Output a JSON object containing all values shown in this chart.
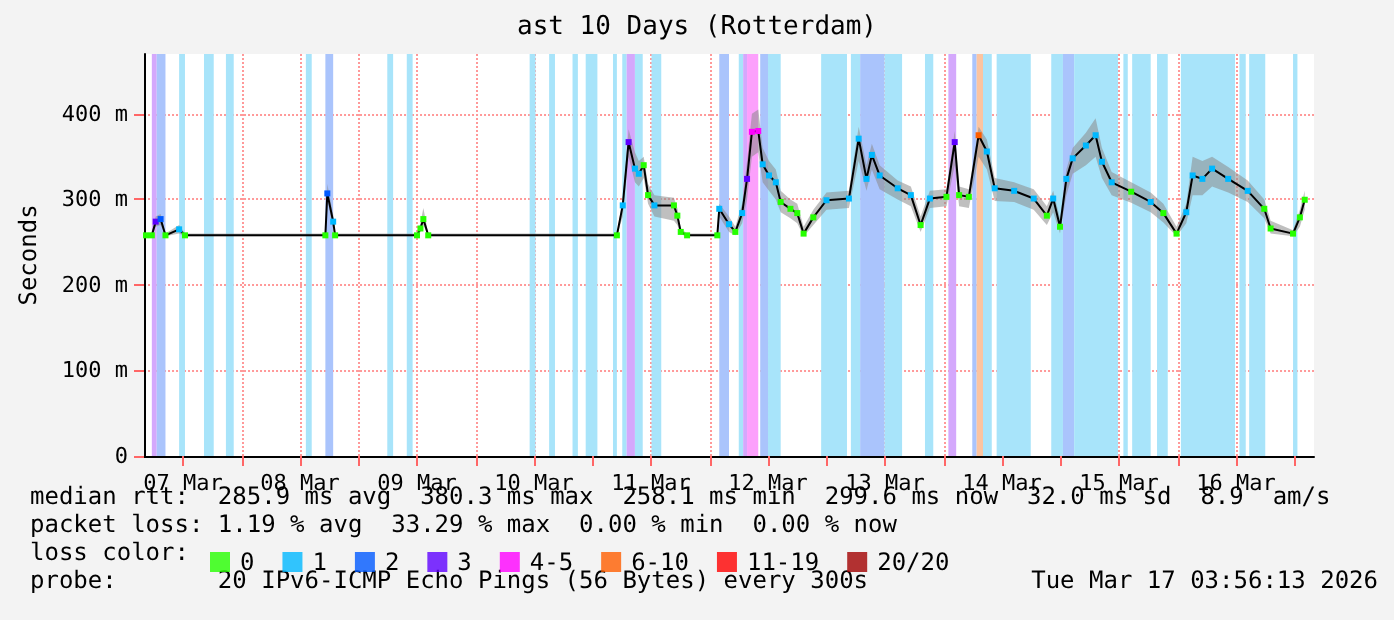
{
  "chart_data": {
    "type": "line",
    "title": "ast 10 Days (Rotterdam)",
    "ylabel": "Seconds",
    "xlim": [
      "2026-03-07T04:00",
      "2026-03-17T04:00"
    ],
    "xticks": [
      {
        "value": "2026-03-07T12:00",
        "label": "07 Mar"
      },
      {
        "value": "2026-03-08T00:00",
        "label": null
      },
      {
        "value": "2026-03-08T12:00",
        "label": "08 Mar"
      },
      {
        "value": "2026-03-09T00:00",
        "label": null
      },
      {
        "value": "2026-03-09T12:00",
        "label": "09 Mar"
      },
      {
        "value": "2026-03-10T00:00",
        "label": null
      },
      {
        "value": "2026-03-10T12:00",
        "label": "10 Mar"
      },
      {
        "value": "2026-03-11T00:00",
        "label": null
      },
      {
        "value": "2026-03-11T12:00",
        "label": "11 Mar"
      },
      {
        "value": "2026-03-12T00:00",
        "label": null
      },
      {
        "value": "2026-03-12T12:00",
        "label": "12 Mar"
      },
      {
        "value": "2026-03-13T00:00",
        "label": null
      },
      {
        "value": "2026-03-13T12:00",
        "label": "13 Mar"
      },
      {
        "value": "2026-03-14T00:00",
        "label": null
      },
      {
        "value": "2026-03-14T12:00",
        "label": "14 Mar"
      },
      {
        "value": "2026-03-15T00:00",
        "label": null
      },
      {
        "value": "2026-03-15T12:00",
        "label": "15 Mar"
      },
      {
        "value": "2026-03-16T00:00",
        "label": null
      },
      {
        "value": "2026-03-16T12:00",
        "label": "16 Mar"
      },
      {
        "value": "2026-03-17T00:00",
        "label": null
      }
    ],
    "ylim": [
      0,
      470
    ],
    "yticks": [
      0,
      {
        "value": 100,
        "label": "100 m"
      },
      {
        "value": 200,
        "label": "200 m"
      },
      {
        "value": 300,
        "label": "300 m"
      },
      {
        "value": 400,
        "label": "400 m"
      }
    ],
    "grid": true,
    "legend": "bottom",
    "legend_title": "loss color:",
    "marker": "square",
    "line_style": "solid",
    "series": [
      {
        "color": "#000000",
        "x": [
          "2026-03-07T04:24",
          "2026-03-07T05:36",
          "2026-03-07T06:24",
          "2026-03-07T07:24",
          "2026-03-07T08:24",
          "2026-03-07T11:12",
          "2026-03-07T12:24",
          "2026-03-08T17:12",
          "2026-03-08T17:36",
          "2026-03-08T18:48",
          "2026-03-08T19:12",
          "2026-03-09T12:00",
          "2026-03-09T12:42",
          "2026-03-09T13:18",
          "2026-03-09T14:18",
          "2026-03-11T05:00",
          "2026-03-11T06:12",
          "2026-03-11T07:24",
          "2026-03-11T08:42",
          "2026-03-11T09:30",
          "2026-03-11T10:30",
          "2026-03-11T11:24",
          "2026-03-11T12:42",
          "2026-03-11T16:42",
          "2026-03-11T17:24",
          "2026-03-11T18:06",
          "2026-03-11T19:24",
          "2026-03-12T01:36",
          "2026-03-12T02:00",
          "2026-03-12T04:00",
          "2026-03-12T05:18",
          "2026-03-12T06:42",
          "2026-03-12T07:42",
          "2026-03-12T08:42",
          "2026-03-12T10:00",
          "2026-03-12T10:54",
          "2026-03-12T12:12",
          "2026-03-12T13:36",
          "2026-03-12T14:36",
          "2026-03-12T16:36",
          "2026-03-12T18:00",
          "2026-03-12T19:18",
          "2026-03-12T21:18",
          "2026-03-13T00:00",
          "2026-03-13T04:36",
          "2026-03-13T06:36",
          "2026-03-13T08:12",
          "2026-03-13T09:18",
          "2026-03-13T10:54",
          "2026-03-13T14:36",
          "2026-03-13T17:18",
          "2026-03-13T19:18",
          "2026-03-13T21:12",
          "2026-03-14T00:36",
          "2026-03-14T02:18",
          "2026-03-14T03:12",
          "2026-03-14T05:12",
          "2026-03-14T07:12",
          "2026-03-14T08:54",
          "2026-03-14T10:30",
          "2026-03-14T14:30",
          "2026-03-14T18:30",
          "2026-03-14T21:12",
          "2026-03-14T22:30",
          "2026-03-14T23:54",
          "2026-03-15T01:12",
          "2026-03-15T02:30",
          "2026-03-15T05:12",
          "2026-03-15T07:12",
          "2026-03-15T08:30",
          "2026-03-15T10:30",
          "2026-03-15T14:30",
          "2026-03-15T18:30",
          "2026-03-15T21:06",
          "2026-03-15T23:48",
          "2026-03-16T01:48",
          "2026-03-16T03:06",
          "2026-03-16T05:06",
          "2026-03-16T07:06",
          "2026-03-16T10:24",
          "2026-03-16T14:24",
          "2026-03-16T17:48",
          "2026-03-16T19:06",
          "2026-03-16T23:42",
          "2026-03-17T01:06",
          "2026-03-17T02:06"
        ],
        "values": [
          258,
          258,
          274,
          277,
          258,
          265,
          258,
          258,
          307,
          274,
          258,
          258,
          266,
          277,
          258,
          258,
          293,
          367,
          336,
          330,
          340,
          305,
          293,
          293,
          281,
          262,
          258,
          258,
          289,
          271,
          262,
          284,
          324,
          379,
          380,
          341,
          328,
          320,
          297,
          289,
          284,
          260,
          279,
          299,
          301,
          371,
          324,
          352,
          328,
          313,
          305,
          270,
          301,
          303,
          367,
          305,
          303,
          375,
          356,
          313,
          310,
          301,
          281,
          301,
          268,
          324,
          348,
          363,
          375,
          344,
          320,
          309,
          297,
          284,
          260,
          285,
          328,
          324,
          336,
          324,
          310,
          289,
          266,
          260,
          279,
          299.6
        ],
        "lower": [
          257,
          257,
          268,
          270,
          257,
          260,
          257,
          257,
          300,
          265,
          257,
          257,
          262,
          270,
          257,
          257,
          280,
          350,
          320,
          315,
          325,
          295,
          280,
          275,
          270,
          259,
          257,
          257,
          280,
          262,
          258,
          272,
          300,
          350,
          355,
          320,
          310,
          300,
          285,
          278,
          272,
          257,
          270,
          288,
          290,
          345,
          310,
          335,
          312,
          300,
          292,
          262,
          290,
          292,
          340,
          292,
          290,
          350,
          335,
          298,
          297,
          288,
          270,
          285,
          260,
          305,
          330,
          340,
          350,
          325,
          305,
          296,
          285,
          273,
          257,
          272,
          305,
          305,
          315,
          308,
          297,
          278,
          260,
          257,
          268,
          288
        ],
        "upper": [
          260,
          260,
          280,
          283,
          260,
          270,
          260,
          260,
          318,
          282,
          260,
          260,
          272,
          290,
          260,
          260,
          300,
          382,
          355,
          345,
          350,
          318,
          305,
          302,
          290,
          266,
          260,
          260,
          295,
          280,
          268,
          295,
          345,
          400,
          405,
          360,
          345,
          335,
          310,
          300,
          295,
          268,
          288,
          308,
          310,
          385,
          340,
          365,
          340,
          322,
          315,
          280,
          310,
          312,
          380,
          315,
          312,
          385,
          370,
          325,
          320,
          312,
          292,
          310,
          278,
          335,
          360,
          378,
          395,
          360,
          332,
          320,
          308,
          295,
          268,
          295,
          350,
          345,
          350,
          338,
          322,
          300,
          275,
          264,
          288,
          310
        ],
        "colors": [
          "#26ff00",
          "#26ff00",
          "#5e00ff",
          "#0059ff",
          "#26ff00",
          "#00b8ff",
          "#26ff00",
          "#26ff00",
          "#0059ff",
          "#00b8ff",
          "#26ff00",
          "#26ff00",
          "#26ff00",
          "#26ff00",
          "#26ff00",
          "#26ff00",
          "#00b8ff",
          "#5e00ff",
          "#00b8ff",
          "#00b8ff",
          "#26ff00",
          "#26ff00",
          "#00b8ff",
          "#26ff00",
          "#26ff00",
          "#26ff00",
          "#26ff00",
          "#26ff00",
          "#00b8ff",
          "#00b8ff",
          "#26ff00",
          "#00b8ff",
          "#5e00ff",
          "#ff00ff",
          "#ff00ff",
          "#00b8ff",
          "#00b8ff",
          "#00b8ff",
          "#26ff00",
          "#26ff00",
          "#26ff00",
          "#26ff00",
          "#26ff00",
          "#00b8ff",
          "#00b8ff",
          "#00b8ff",
          "#00b8ff",
          "#00b8ff",
          "#00b8ff",
          "#00b8ff",
          "#00b8ff",
          "#26ff00",
          "#00b8ff",
          "#26ff00",
          "#5e00ff",
          "#26ff00",
          "#26ff00",
          "#ff5e00",
          "#00b8ff",
          "#00b8ff",
          "#00b8ff",
          "#00b8ff",
          "#26ff00",
          "#00b8ff",
          "#26ff00",
          "#00b8ff",
          "#00b8ff",
          "#00b8ff",
          "#00b8ff",
          "#00b8ff",
          "#00b8ff",
          "#26ff00",
          "#00b8ff",
          "#26ff00",
          "#26ff00",
          "#00b8ff",
          "#00b8ff",
          "#00b8ff",
          "#00b8ff",
          "#00b8ff",
          "#00b8ff",
          "#26ff00",
          "#26ff00",
          "#26ff00",
          "#26ff00",
          "#26ff00"
        ]
      },
      {
        "type": "scatter",
        "name": "0",
        "color": "#26ff00"
      },
      {
        "type": "scatter",
        "name": "1",
        "color": "#00b8ff"
      },
      {
        "type": "scatter",
        "name": "2",
        "color": "#0059ff"
      },
      {
        "type": "scatter",
        "name": "3",
        "color": "#5e00ff"
      },
      {
        "type": "scatter",
        "name": "4-5",
        "color": "#ff00ff"
      },
      {
        "type": "scatter",
        "name": "6-10",
        "color": "#ff5e00"
      },
      {
        "type": "scatter",
        "name": "11-19",
        "color": "#ff0000"
      },
      {
        "type": "scatter",
        "name": "20/20",
        "color": "#a10000"
      }
    ],
    "bands": [
      {
        "axis": "x",
        "from": "2026-03-07T05:36",
        "to": "2026-03-07T06:36",
        "color": "#d4a8fc"
      },
      {
        "axis": "x",
        "from": "2026-03-07T06:36",
        "to": "2026-03-07T08:24",
        "color": "#aac4fc"
      },
      {
        "axis": "x",
        "from": "2026-03-07T11:12",
        "to": "2026-03-07T12:24",
        "color": "#a8e4fa"
      },
      {
        "axis": "x",
        "from": "2026-03-07T16:18",
        "to": "2026-03-07T18:18",
        "color": "#a8e4fa"
      },
      {
        "axis": "x",
        "from": "2026-03-07T20:48",
        "to": "2026-03-07T22:24",
        "color": "#a8e4fa"
      },
      {
        "axis": "x",
        "from": "2026-03-08T13:12",
        "to": "2026-03-08T14:24",
        "color": "#a8e4fa"
      },
      {
        "axis": "x",
        "from": "2026-03-08T17:12",
        "to": "2026-03-08T18:48",
        "color": "#aac4fc"
      },
      {
        "axis": "x",
        "from": "2026-03-09T05:54",
        "to": "2026-03-09T07:06",
        "color": "#a8e4fa"
      },
      {
        "axis": "x",
        "from": "2026-03-09T09:54",
        "to": "2026-03-09T11:06",
        "color": "#a8e4fa"
      },
      {
        "axis": "x",
        "from": "2026-03-10T11:06",
        "to": "2026-03-10T12:18",
        "color": "#a8e4fa"
      },
      {
        "axis": "x",
        "from": "2026-03-10T15:06",
        "to": "2026-03-10T16:18",
        "color": "#a8e4fa"
      },
      {
        "axis": "x",
        "from": "2026-03-10T19:54",
        "to": "2026-03-10T21:00",
        "color": "#a8e4fa"
      },
      {
        "axis": "x",
        "from": "2026-03-10T22:36",
        "to": "2026-03-11T01:00",
        "color": "#a8e4fa"
      },
      {
        "axis": "x",
        "from": "2026-03-11T04:12",
        "to": "2026-03-11T05:00",
        "color": "#a8e4fa"
      },
      {
        "axis": "x",
        "from": "2026-03-11T06:06",
        "to": "2026-03-11T07:00",
        "color": "#a8e4fa"
      },
      {
        "axis": "x",
        "from": "2026-03-11T07:00",
        "to": "2026-03-11T08:42",
        "color": "#d4a8fc"
      },
      {
        "axis": "x",
        "from": "2026-03-11T08:42",
        "to": "2026-03-11T10:18",
        "color": "#a8e4fa"
      },
      {
        "axis": "x",
        "from": "2026-03-11T12:06",
        "to": "2026-03-11T14:06",
        "color": "#a8e4fa"
      },
      {
        "axis": "x",
        "from": "2026-03-12T02:00",
        "to": "2026-03-12T04:00",
        "color": "#aac4fc"
      },
      {
        "axis": "x",
        "from": "2026-03-12T06:00",
        "to": "2026-03-12T06:54",
        "color": "#a8e4fa"
      },
      {
        "axis": "x",
        "from": "2026-03-12T06:54",
        "to": "2026-03-12T07:42",
        "color": "#d4a8fc"
      },
      {
        "axis": "x",
        "from": "2026-03-12T07:42",
        "to": "2026-03-12T10:00",
        "color": "#fca0fc"
      },
      {
        "axis": "x",
        "from": "2026-03-12T10:24",
        "to": "2026-03-12T12:00",
        "color": "#aac4fc"
      },
      {
        "axis": "x",
        "from": "2026-03-12T12:00",
        "to": "2026-03-12T14:36",
        "color": "#a8e4fa"
      },
      {
        "axis": "x",
        "from": "2026-03-12T22:54",
        "to": "2026-03-13T04:12",
        "color": "#a8e4fa"
      },
      {
        "axis": "x",
        "from": "2026-03-13T05:00",
        "to": "2026-03-13T06:54",
        "color": "#a8e4fa"
      },
      {
        "axis": "x",
        "from": "2026-03-13T06:54",
        "to": "2026-03-13T11:54",
        "color": "#aac4fc"
      },
      {
        "axis": "x",
        "from": "2026-03-13T11:54",
        "to": "2026-03-13T15:30",
        "color": "#a8e4fa"
      },
      {
        "axis": "x",
        "from": "2026-03-13T20:12",
        "to": "2026-03-13T21:54",
        "color": "#a8e4fa"
      },
      {
        "axis": "x",
        "from": "2026-03-14T01:00",
        "to": "2026-03-14T02:36",
        "color": "#d4a8fc"
      },
      {
        "axis": "x",
        "from": "2026-03-14T05:54",
        "to": "2026-03-14T06:48",
        "color": "#aac4fc"
      },
      {
        "axis": "x",
        "from": "2026-03-14T06:48",
        "to": "2026-03-14T08:06",
        "color": "#fcc4a0"
      },
      {
        "axis": "x",
        "from": "2026-03-14T08:06",
        "to": "2026-03-14T09:54",
        "color": "#a8e4fa"
      },
      {
        "axis": "x",
        "from": "2026-03-14T10:54",
        "to": "2026-03-14T17:54",
        "color": "#a8e4fa"
      },
      {
        "axis": "x",
        "from": "2026-03-14T22:06",
        "to": "2026-03-15T00:30",
        "color": "#a8e4fa"
      },
      {
        "axis": "x",
        "from": "2026-03-15T00:30",
        "to": "2026-03-15T02:48",
        "color": "#aac4fc"
      },
      {
        "axis": "x",
        "from": "2026-03-15T02:48",
        "to": "2026-03-15T11:48",
        "color": "#a8e4fa"
      },
      {
        "axis": "x",
        "from": "2026-03-15T12:54",
        "to": "2026-03-15T13:48",
        "color": "#a8e4fa"
      },
      {
        "axis": "x",
        "from": "2026-03-15T14:42",
        "to": "2026-03-15T18:30",
        "color": "#a8e4fa"
      },
      {
        "axis": "x",
        "from": "2026-03-15T19:48",
        "to": "2026-03-15T22:00",
        "color": "#a8e4fa"
      },
      {
        "axis": "x",
        "from": "2026-03-16T00:42",
        "to": "2026-03-16T11:48",
        "color": "#a8e4fa"
      },
      {
        "axis": "x",
        "from": "2026-03-16T12:42",
        "to": "2026-03-16T14:00",
        "color": "#a8e4fa"
      },
      {
        "axis": "x",
        "from": "2026-03-16T14:42",
        "to": "2026-03-16T18:00",
        "color": "#a8e4fa"
      },
      {
        "axis": "x",
        "from": "2026-03-16T23:42",
        "to": "2026-03-17T00:36",
        "color": "#a8e4fa"
      }
    ],
    "annotations": [
      "median rtt:  285.9 ms avg  380.3 ms max  258.1 ms min  299.6 ms now  32.0 ms sd  8.9  am/s",
      "packet loss: 1.19 % avg  33.29 % max  0.00 % min  0.00 % now",
      "probe:       20 IPv6-ICMP Echo Pings (56 Bytes) every 300s",
      "Tue Mar 17 03:56:13 2026"
    ]
  }
}
